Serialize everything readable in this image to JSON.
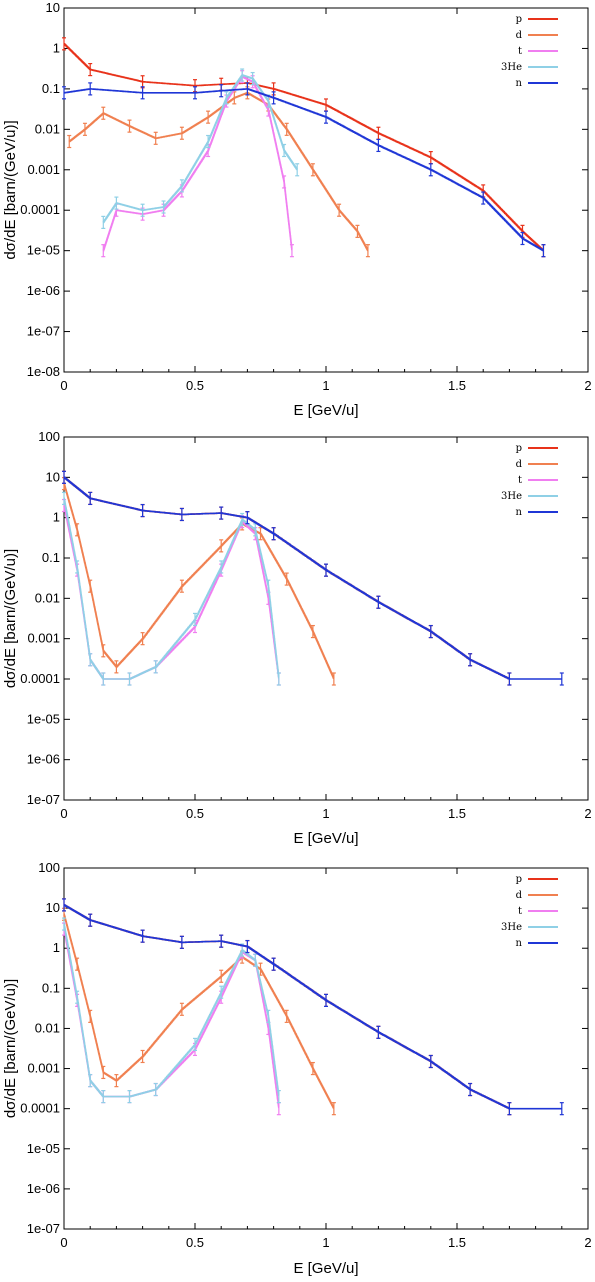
{
  "figure": {
    "panel_count": 3
  },
  "colors": {
    "p": "#e8321a",
    "d": "#f08050",
    "t": "#f07ef0",
    "3He": "#8fd0e6",
    "n": "#1f36d6"
  },
  "chart_data": [
    {
      "type": "line",
      "xlabel": "E   [GeV/u]",
      "ylabel": "dσ/dE   [barn/(GeV/u)]",
      "xlim": [
        0,
        2
      ],
      "ylim": [
        1e-08,
        10
      ],
      "yscale": "log",
      "grid": false,
      "legend_position": "top-right",
      "x_ticks": [
        "0",
        "0.5",
        "1",
        "1.5",
        "2"
      ],
      "y_ticks": [
        "1e-08",
        "1e-07",
        "1e-06",
        "1e-05",
        "0.0001",
        "0.001",
        "0.01",
        "0.1",
        "1",
        "10"
      ],
      "series": [
        {
          "name": "p",
          "x": [
            0,
            0.1,
            0.3,
            0.5,
            0.6,
            0.7,
            0.8,
            1.0,
            1.2,
            1.4,
            1.6,
            1.75,
            1.83
          ],
          "y": [
            1.3,
            0.3,
            0.15,
            0.12,
            0.13,
            0.14,
            0.1,
            0.04,
            0.008,
            0.002,
            0.0003,
            3e-05,
            1e-05
          ]
        },
        {
          "name": "d",
          "x": [
            0.02,
            0.08,
            0.15,
            0.25,
            0.35,
            0.45,
            0.55,
            0.65,
            0.7,
            0.78,
            0.85,
            0.95,
            1.05,
            1.12,
            1.16
          ],
          "y": [
            0.005,
            0.01,
            0.025,
            0.012,
            0.006,
            0.008,
            0.02,
            0.06,
            0.08,
            0.04,
            0.01,
            0.001,
            0.0001,
            3e-05,
            1e-05
          ]
        },
        {
          "name": "t",
          "x": [
            0.15,
            0.2,
            0.3,
            0.38,
            0.45,
            0.55,
            0.62,
            0.68,
            0.72,
            0.78,
            0.84,
            0.87
          ],
          "y": [
            1e-05,
            0.0001,
            8e-05,
            0.0001,
            0.0003,
            0.003,
            0.05,
            0.2,
            0.15,
            0.03,
            0.0005,
            1e-05
          ]
        },
        {
          "name": "3He",
          "x": [
            0.15,
            0.2,
            0.3,
            0.38,
            0.45,
            0.55,
            0.62,
            0.68,
            0.72,
            0.78,
            0.84,
            0.89
          ],
          "y": [
            5e-05,
            0.00015,
            0.0001,
            0.00012,
            0.0004,
            0.005,
            0.06,
            0.22,
            0.18,
            0.05,
            0.003,
            0.001
          ]
        },
        {
          "name": "n",
          "x": [
            0,
            0.1,
            0.3,
            0.5,
            0.6,
            0.7,
            0.8,
            1.0,
            1.2,
            1.4,
            1.6,
            1.75,
            1.83
          ],
          "y": [
            0.08,
            0.1,
            0.08,
            0.08,
            0.09,
            0.1,
            0.06,
            0.02,
            0.004,
            0.001,
            0.0002,
            2e-05,
            1e-05
          ]
        }
      ]
    },
    {
      "type": "line",
      "xlabel": "E   [GeV/u]",
      "ylabel": "dσ/dE   [barn/(GeV/u)]",
      "xlim": [
        0,
        2
      ],
      "ylim": [
        1e-07,
        100
      ],
      "yscale": "log",
      "grid": false,
      "legend_position": "top-right",
      "x_ticks": [
        "0",
        "0.5",
        "1",
        "1.5",
        "2"
      ],
      "y_ticks": [
        "1e-07",
        "1e-06",
        "1e-05",
        "0.0001",
        "0.001",
        "0.01",
        "0.1",
        "1",
        "10",
        "100"
      ],
      "series": [
        {
          "name": "p",
          "x": [
            0,
            0.1,
            0.3,
            0.45,
            0.6,
            0.7,
            0.8,
            1.0,
            1.2,
            1.4,
            1.55,
            1.7
          ],
          "y": [
            10,
            3,
            1.5,
            1.2,
            1.3,
            1.0,
            0.4,
            0.05,
            0.008,
            0.0015,
            0.0003,
            0.0001
          ]
        },
        {
          "name": "d",
          "x": [
            0,
            0.05,
            0.1,
            0.15,
            0.2,
            0.3,
            0.45,
            0.6,
            0.68,
            0.75,
            0.85,
            0.95,
            1.03
          ],
          "y": [
            7,
            0.5,
            0.02,
            0.0005,
            0.0002,
            0.001,
            0.02,
            0.2,
            0.7,
            0.4,
            0.03,
            0.0015,
            0.0001
          ]
        },
        {
          "name": "t",
          "x": [
            0,
            0.05,
            0.1,
            0.15,
            0.25,
            0.35,
            0.5,
            0.6,
            0.68,
            0.73,
            0.78,
            0.82
          ],
          "y": [
            2,
            0.05,
            0.0003,
            0.0001,
            0.0001,
            0.0002,
            0.002,
            0.05,
            0.8,
            0.4,
            0.01,
            0.0001
          ]
        },
        {
          "name": "3He",
          "x": [
            0,
            0.05,
            0.1,
            0.15,
            0.25,
            0.35,
            0.5,
            0.6,
            0.68,
            0.73,
            0.78,
            0.82
          ],
          "y": [
            3,
            0.06,
            0.0003,
            0.0001,
            0.0001,
            0.0002,
            0.003,
            0.06,
            0.9,
            0.5,
            0.02,
            0.0001
          ]
        },
        {
          "name": "n",
          "x": [
            0,
            0.1,
            0.3,
            0.45,
            0.6,
            0.7,
            0.8,
            1.0,
            1.2,
            1.4,
            1.55,
            1.7,
            1.9
          ],
          "y": [
            10,
            3,
            1.5,
            1.2,
            1.3,
            1.0,
            0.4,
            0.05,
            0.008,
            0.0015,
            0.0003,
            0.0001,
            0.0001
          ]
        }
      ]
    },
    {
      "type": "line",
      "xlabel": "E   [GeV/u]",
      "ylabel": "dσ/dE   [barn/(GeV/u)]",
      "xlim": [
        0,
        2
      ],
      "ylim": [
        1e-07,
        100
      ],
      "yscale": "log",
      "grid": false,
      "legend_position": "top-right",
      "x_ticks": [
        "0",
        "0.5",
        "1",
        "1.5",
        "2"
      ],
      "y_ticks": [
        "1e-07",
        "1e-06",
        "1e-05",
        "0.0001",
        "0.001",
        "0.01",
        "0.1",
        "1",
        "10",
        "100"
      ],
      "series": [
        {
          "name": "p",
          "x": [
            0,
            0.1,
            0.3,
            0.45,
            0.6,
            0.7,
            0.8,
            1.0,
            1.2,
            1.4,
            1.55,
            1.7
          ],
          "y": [
            12,
            5,
            2,
            1.4,
            1.5,
            1.1,
            0.4,
            0.05,
            0.008,
            0.0015,
            0.0003,
            0.0001
          ]
        },
        {
          "name": "d",
          "x": [
            0,
            0.05,
            0.1,
            0.15,
            0.2,
            0.3,
            0.45,
            0.6,
            0.68,
            0.75,
            0.85,
            0.95,
            1.03
          ],
          "y": [
            7,
            0.4,
            0.02,
            0.0008,
            0.0005,
            0.002,
            0.03,
            0.2,
            0.6,
            0.3,
            0.02,
            0.001,
            0.0001
          ]
        },
        {
          "name": "t",
          "x": [
            0,
            0.05,
            0.1,
            0.15,
            0.25,
            0.35,
            0.5,
            0.6,
            0.68,
            0.73,
            0.78,
            0.82
          ],
          "y": [
            3,
            0.05,
            0.0005,
            0.0002,
            0.0002,
            0.0003,
            0.003,
            0.06,
            0.8,
            0.5,
            0.01,
            0.0001
          ]
        },
        {
          "name": "3He",
          "x": [
            0,
            0.05,
            0.1,
            0.15,
            0.25,
            0.35,
            0.5,
            0.6,
            0.68,
            0.73,
            0.78,
            0.82
          ],
          "y": [
            4,
            0.06,
            0.0005,
            0.0002,
            0.0002,
            0.0003,
            0.004,
            0.08,
            0.9,
            0.5,
            0.02,
            0.0002
          ]
        },
        {
          "name": "n",
          "x": [
            0,
            0.1,
            0.3,
            0.45,
            0.6,
            0.7,
            0.8,
            1.0,
            1.2,
            1.4,
            1.55,
            1.7,
            1.9
          ],
          "y": [
            12,
            5,
            2,
            1.4,
            1.5,
            1.1,
            0.4,
            0.05,
            0.008,
            0.0015,
            0.0003,
            0.0001,
            0.0001
          ]
        }
      ]
    }
  ]
}
